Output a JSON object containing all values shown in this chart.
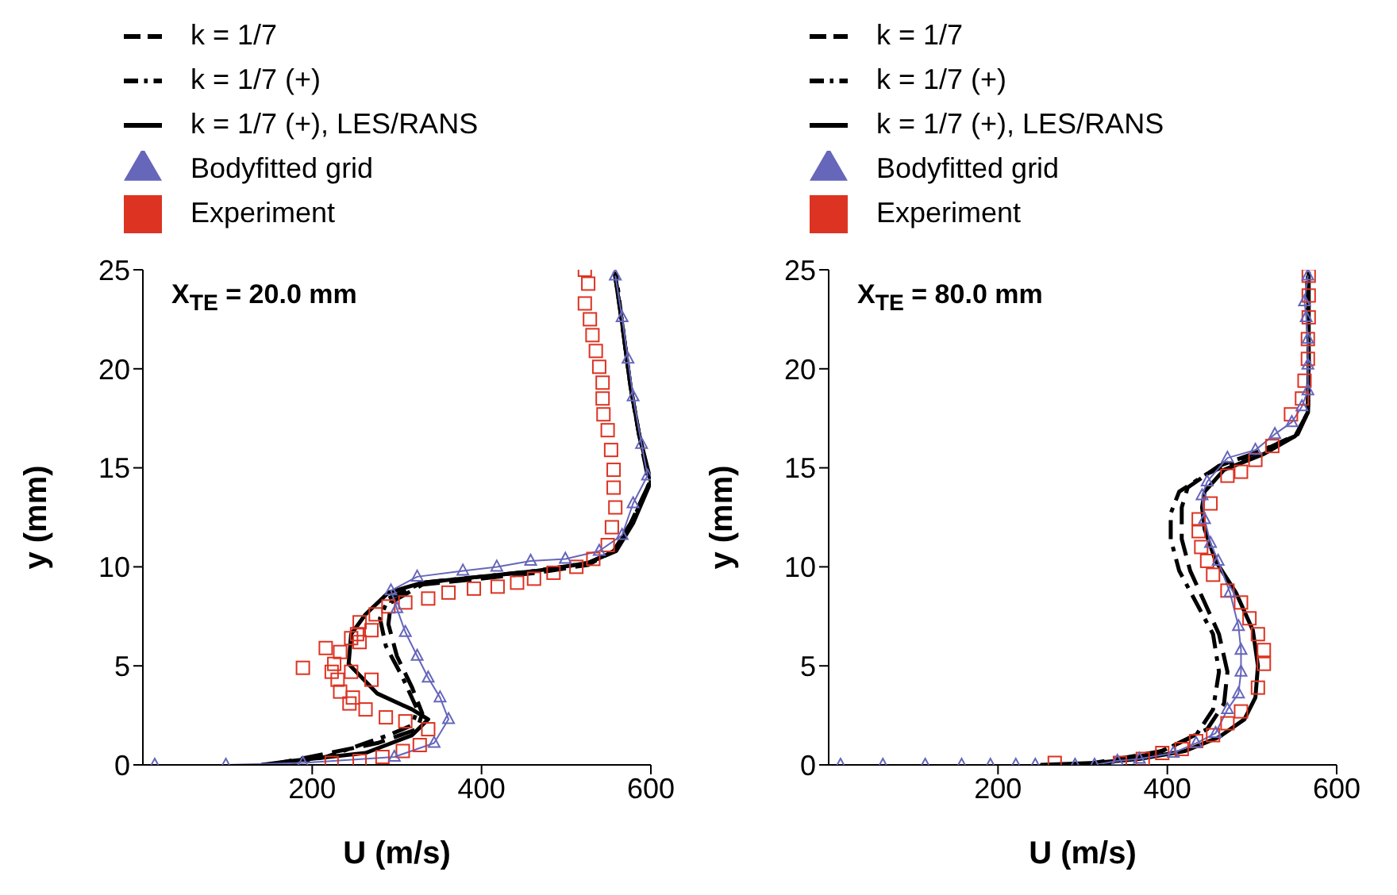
{
  "chart_data": [
    {
      "type": "line",
      "annotations": [
        "X$_{TE}$ = 20.0 mm"
      ],
      "xlabel": "U (m/s)",
      "ylabel": "y (mm)",
      "xlim": [
        0,
        600
      ],
      "xticks": [
        200,
        400,
        600
      ],
      "ylim": [
        0,
        25
      ],
      "yticks": [
        0,
        5,
        10,
        15,
        20,
        25
      ],
      "legend": "top",
      "grid": false,
      "series": [
        {
          "name": "k = 1/7",
          "color": "#000000",
          "line_style": "dashed",
          "marker": "none",
          "x": [
            150,
            209,
            277,
            324,
            330,
            318,
            300,
            290,
            293,
            330,
            398,
            465,
            526,
            556,
            576,
            598,
            586,
            576,
            566,
            558
          ],
          "values": [
            0,
            0.5,
            1.1,
            1.8,
            2.6,
            3.9,
            5.5,
            7.1,
            8.2,
            9.1,
            9.4,
            9.7,
            10.1,
            10.8,
            12.2,
            14.2,
            16.7,
            19.1,
            22.3,
            24.7
          ]
        },
        {
          "name": "k = 1/7 (+)",
          "color": "#000000",
          "line_style": "dashdot",
          "marker": "none",
          "x": [
            160,
            216,
            290,
            318,
            324,
            307,
            287,
            280,
            290,
            330,
            398,
            465,
            526,
            557,
            577,
            599,
            586,
            576,
            566,
            559
          ],
          "values": [
            0,
            0.4,
            1.5,
            2.0,
            2.8,
            4.4,
            6.0,
            7.4,
            8.4,
            9.2,
            9.5,
            9.8,
            10.2,
            10.8,
            12.2,
            14.3,
            16.7,
            19.1,
            22.3,
            24.8
          ]
        },
        {
          "name": "k = 1/7 (+), LES/RANS",
          "color": "#000000",
          "line_style": "solid",
          "marker": "none",
          "x": [
            140,
            176,
            263,
            318,
            337,
            318,
            277,
            243,
            246,
            263,
            290,
            330,
            398,
            465,
            526,
            559,
            579,
            600,
            586,
            576,
            566,
            557
          ],
          "values": [
            0,
            0.2,
            0.6,
            1.5,
            2.3,
            2.8,
            3.6,
            5.1,
            6.6,
            7.6,
            8.7,
            9.2,
            9.5,
            9.8,
            10.2,
            10.8,
            12.2,
            14.3,
            16.7,
            19.1,
            22.3,
            24.9
          ]
        },
        {
          "name": "Bodyfitted grid",
          "color": "#6666bb",
          "line_style": "solid",
          "marker": "triangle",
          "x": [
            14,
            98,
            189,
            297,
            344,
            361,
            351,
            337,
            324,
            310,
            300,
            293,
            324,
            378,
            418,
            458,
            499,
            539,
            566,
            579,
            596,
            589,
            579,
            573,
            566,
            558
          ],
          "values": [
            0,
            0,
            0.1,
            0.4,
            1.1,
            2.3,
            3.4,
            4.4,
            5.5,
            6.7,
            7.9,
            8.8,
            9.5,
            9.8,
            10.0,
            10.3,
            10.4,
            10.8,
            11.6,
            13.2,
            14.6,
            16.2,
            18.6,
            20.5,
            22.6,
            24.7
          ]
        },
        {
          "name": "Experiment",
          "type": "scatter",
          "color": "#dd3322",
          "marker": "square",
          "x": [
            522,
            526,
            522,
            528,
            531,
            535,
            539,
            543,
            543,
            544,
            549,
            553,
            556,
            556,
            558,
            554,
            549,
            532,
            512,
            485,
            462,
            442,
            419,
            391,
            361,
            337,
            310,
            290,
            275,
            256,
            270,
            253,
            246,
            256,
            216,
            233,
            189,
            226,
            223,
            246,
            230,
            270,
            233,
            248,
            244,
            263,
            287,
            310,
            337,
            327,
            307,
            283,
            256,
            223
          ],
          "values": [
            25,
            24.3,
            23.3,
            22.5,
            21.7,
            20.9,
            20.1,
            19.3,
            18.5,
            17.7,
            16.9,
            15.9,
            14.9,
            14.0,
            13.0,
            12.0,
            11.1,
            10.4,
            10.0,
            9.7,
            9.4,
            9.2,
            9.0,
            8.9,
            8.7,
            8.4,
            8.2,
            8.0,
            7.6,
            7.2,
            6.8,
            6.6,
            6.4,
            6.2,
            5.9,
            5.7,
            4.9,
            5.1,
            4.7,
            4.7,
            4.3,
            4.3,
            3.7,
            3.4,
            3.1,
            2.8,
            2.4,
            2.2,
            1.8,
            1.0,
            0.7,
            0.4,
            0.2,
            0.1
          ]
        }
      ]
    },
    {
      "type": "line",
      "annotations": [
        "X$_{TE}$ = 80.0 mm"
      ],
      "xlabel": "U (m/s)",
      "ylabel": "y (mm)",
      "xlim": [
        0,
        600
      ],
      "xticks": [
        200,
        400,
        600
      ],
      "ylim": [
        0,
        25
      ],
      "yticks": [
        0,
        5,
        10,
        15,
        20,
        25
      ],
      "legend": "top",
      "grid": false,
      "series": [
        {
          "name": "k = 1/7",
          "color": "#000000",
          "line_style": "dashed",
          "marker": "none",
          "x": [
            300,
            327,
            394,
            447,
            467,
            471,
            461,
            444,
            427,
            417,
            417,
            424,
            461,
            514,
            554,
            566,
            567,
            566
          ],
          "values": [
            0,
            0.2,
            0.7,
            1.8,
            3.1,
            4.7,
            6.6,
            8.2,
            9.8,
            11.4,
            13.0,
            14.0,
            15.1,
            15.9,
            16.7,
            17.8,
            20.5,
            24.7
          ]
        },
        {
          "name": "k = 1/7 (+)",
          "color": "#000000",
          "line_style": "dashdot",
          "marker": "none",
          "x": [
            315,
            327,
            388,
            434,
            454,
            461,
            454,
            434,
            414,
            404,
            404,
            414,
            447,
            501,
            551,
            566,
            567,
            565
          ],
          "values": [
            0,
            0.1,
            0.6,
            1.5,
            2.8,
            4.7,
            6.6,
            8.2,
            9.8,
            11.4,
            12.7,
            13.8,
            14.7,
            15.7,
            16.6,
            17.8,
            20.5,
            24.8
          ]
        },
        {
          "name": "k = 1/7 (+), LES/RANS",
          "color": "#000000",
          "line_style": "solid",
          "marker": "none",
          "x": [
            250,
            314,
            367,
            421,
            461,
            491,
            504,
            507,
            501,
            481,
            457,
            444,
            441,
            444,
            467,
            514,
            551,
            566,
            567,
            567
          ],
          "values": [
            0,
            0.1,
            0.3,
            0.7,
            1.4,
            2.3,
            3.4,
            5.0,
            6.8,
            8.7,
            10.3,
            11.9,
            13.0,
            13.8,
            14.9,
            15.7,
            16.6,
            17.8,
            20.5,
            24.9
          ]
        },
        {
          "name": "Bodyfitted grid",
          "color": "#6666bb",
          "line_style": "solid",
          "marker": "triangle",
          "x": [
            14,
            64,
            114,
            157,
            191,
            221,
            244,
            291,
            314,
            341,
            367,
            407,
            434,
            457,
            471,
            484,
            487,
            487,
            484,
            474,
            460,
            451,
            444,
            441,
            447,
            471,
            504,
            527,
            547,
            559,
            566,
            566,
            566,
            564,
            562,
            566
          ],
          "values": [
            0,
            0,
            0,
            0,
            0,
            0,
            0,
            0,
            0,
            0.2,
            0.3,
            0.6,
            1.1,
            1.6,
            2.8,
            3.6,
            4.7,
            5.8,
            7.0,
            8.7,
            10.3,
            11.2,
            12.4,
            13.6,
            14.3,
            15.5,
            15.9,
            16.7,
            17.3,
            18.1,
            18.9,
            20.2,
            21.5,
            22.6,
            23.4,
            24.7
          ]
        },
        {
          "name": "Experiment",
          "type": "scatter",
          "color": "#dd3322",
          "marker": "square",
          "x": [
            267,
            344,
            371,
            394,
            417,
            434,
            454,
            471,
            487,
            507,
            514,
            514,
            507,
            497,
            487,
            471,
            454,
            447,
            440,
            437,
            437,
            451,
            471,
            487,
            504,
            524,
            546,
            559,
            562,
            566,
            566,
            567,
            567,
            567
          ],
          "values": [
            0.1,
            0.1,
            0.3,
            0.6,
            0.8,
            1.2,
            1.5,
            2.1,
            2.7,
            3.9,
            5.1,
            5.8,
            6.6,
            7.4,
            8.2,
            8.8,
            9.6,
            10.3,
            11.0,
            11.8,
            12.4,
            13.2,
            14.6,
            14.8,
            15.4,
            16.1,
            17.7,
            18.5,
            19.4,
            20.5,
            21.5,
            22.6,
            23.7,
            24.7
          ]
        }
      ]
    }
  ]
}
